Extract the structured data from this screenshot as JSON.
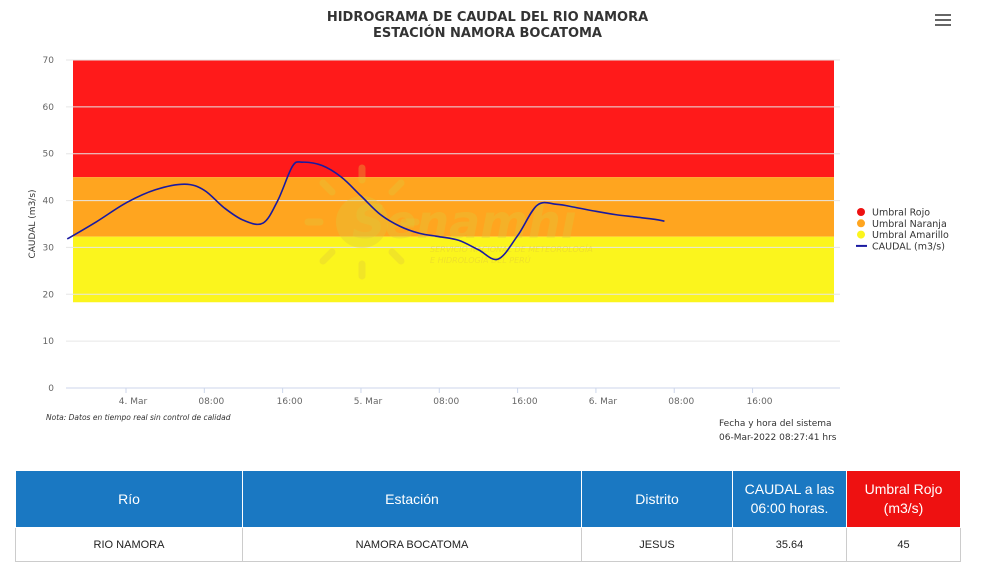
{
  "title": {
    "line1": "HIDROGRAMA DE CAUDAL DEL RIO NAMORA",
    "line2": "ESTACIÓN NAMORA BOCATOMA"
  },
  "menu_icon": "hamburger-menu-icon",
  "watermark": {
    "name": "Senamhi",
    "line1": "SERVICIO NACIONAL DE METEOROLOGÍA",
    "line2": "E HIDROLOGÍA DEL PERÚ"
  },
  "note": "Nota: Datos en tiempo real sin control de calidad",
  "system_date": {
    "label": "Fecha y hora del sistema",
    "value": "06-Mar-2022 08:27:41 hrs"
  },
  "chart_data": {
    "type": "line",
    "ylabel": "CAUDAL (m3/s)",
    "ylim": [
      0,
      70
    ],
    "yticks": [
      "0",
      "10",
      "20",
      "30",
      "40",
      "50",
      "60",
      "70"
    ],
    "xlim_hours": [
      -6,
      63
    ],
    "xticks": [
      {
        "h": 0,
        "label": "4. Mar"
      },
      {
        "h": 8,
        "label": "08:00"
      },
      {
        "h": 16,
        "label": "16:00"
      },
      {
        "h": 24,
        "label": "5. Mar"
      },
      {
        "h": 32,
        "label": "08:00"
      },
      {
        "h": 40,
        "label": "16:00"
      },
      {
        "h": 48,
        "label": "6. Mar"
      },
      {
        "h": 56,
        "label": "08:00"
      },
      {
        "h": 64,
        "label": "16:00"
      }
    ],
    "bands": [
      {
        "name": "Umbral Rojo",
        "from": 45,
        "to": 70,
        "color": "#ff1a1a"
      },
      {
        "name": "Umbral Naranja",
        "from": 32.3,
        "to": 45,
        "color": "#ffa51f"
      },
      {
        "name": "Umbral Amarillo",
        "from": 18.3,
        "to": 32.3,
        "color": "#fbf51d"
      }
    ],
    "series": [
      {
        "name": "CAUDAL (m3/s)",
        "color": "#1a1aa0",
        "x_hours": [
          -6,
          -3,
          0,
          3,
          6,
          8,
          10,
          12,
          14,
          15.5,
          17,
          18,
          20,
          22,
          24,
          26,
          28,
          30,
          32,
          34,
          36,
          38,
          40,
          42,
          44,
          46,
          48,
          50,
          52,
          54,
          55
        ],
        "values": [
          31.8,
          35.5,
          39.5,
          42.3,
          43.5,
          42.2,
          38.5,
          35.8,
          35.2,
          40.0,
          47.3,
          48.2,
          47.5,
          45.0,
          41.0,
          37.0,
          34.5,
          33.0,
          32.3,
          31.5,
          29.5,
          27.5,
          32.5,
          39.0,
          39.2,
          38.5,
          37.7,
          37.0,
          36.5,
          36.0,
          35.6
        ]
      }
    ]
  },
  "legend": [
    {
      "label": "Umbral Rojo",
      "color": "#ee1111",
      "shape": "circle"
    },
    {
      "label": "Umbral Naranja",
      "color": "#ffa51f",
      "shape": "circle"
    },
    {
      "label": "Umbral Amarillo",
      "color": "#fbf51d",
      "shape": "circle"
    },
    {
      "label": "CAUDAL (m3/s)",
      "color": "#1a1aa0",
      "shape": "line"
    }
  ],
  "table": {
    "headers": [
      "Río",
      "Estación",
      "Distrito",
      "CAUDAL a las 06:00 horas.",
      "Umbral Rojo (m3/s)"
    ],
    "row": [
      "RIO NAMORA",
      "NAMORA BOCATOMA",
      "JESUS",
      "35.64",
      "45"
    ]
  }
}
